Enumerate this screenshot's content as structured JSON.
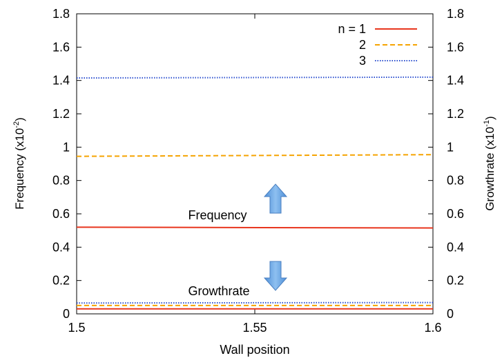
{
  "chart_data": {
    "type": "line",
    "xlabel": "Wall position",
    "ylabel_left": {
      "text": "Frequency (x10",
      "sup": "-2",
      "tail": ")"
    },
    "ylabel_right": {
      "text": "Growthrate (x10",
      "sup": "-1",
      "tail": ")"
    },
    "xlim": [
      1.5,
      1.6
    ],
    "ylim": [
      0,
      1.8
    ],
    "x_ticks": [
      "1.5",
      "1.55",
      "1.6"
    ],
    "y_ticks": [
      "0",
      "0.2",
      "0.4",
      "0.6",
      "0.8",
      "1",
      "1.2",
      "1.4",
      "1.6",
      "1.8"
    ],
    "grid": false,
    "legend_position": "top-right",
    "series": [
      {
        "name": "n = 1",
        "quantity": "Frequency",
        "color": "#e8341c",
        "dash": "solid",
        "x": [
          1.5,
          1.6
        ],
        "y": [
          0.52,
          0.515
        ]
      },
      {
        "name": "2",
        "quantity": "Frequency",
        "color": "#f5a300",
        "dash": "dashed",
        "x": [
          1.5,
          1.6
        ],
        "y": [
          0.945,
          0.955
        ]
      },
      {
        "name": "3",
        "quantity": "Frequency",
        "color": "#2b4fcf",
        "dash": "dotted",
        "x": [
          1.5,
          1.6
        ],
        "y": [
          1.415,
          1.42
        ]
      },
      {
        "name": "n = 1",
        "quantity": "Growthrate",
        "color": "#e8341c",
        "dash": "solid",
        "x": [
          1.5,
          1.6
        ],
        "y": [
          0.03,
          0.03
        ]
      },
      {
        "name": "2",
        "quantity": "Growthrate",
        "color": "#f5a300",
        "dash": "dashed",
        "x": [
          1.5,
          1.6
        ],
        "y": [
          0.05,
          0.05
        ]
      },
      {
        "name": "3",
        "quantity": "Growthrate",
        "color": "#2b4fcf",
        "dash": "dotted",
        "x": [
          1.5,
          1.6
        ],
        "y": [
          0.065,
          0.068
        ]
      }
    ],
    "annotations": {
      "frequency_label": "Frequency",
      "growthrate_label": "Growthrate",
      "frequency_arrow": "up",
      "growthrate_arrow": "down"
    },
    "arrow_color": "#6aa3e0"
  }
}
